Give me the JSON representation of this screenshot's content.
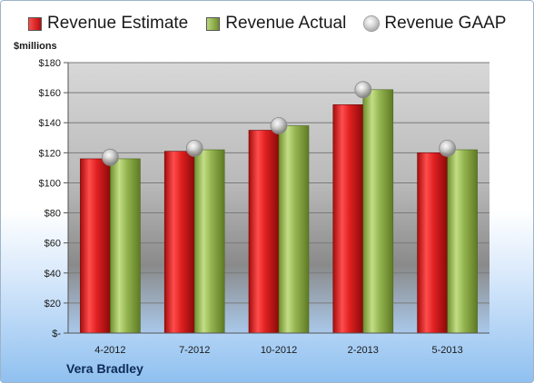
{
  "chart_data": {
    "type": "bar",
    "unit_label": "$millions",
    "categories": [
      "4-2012",
      "7-2012",
      "10-2012",
      "2-2013",
      "5-2013"
    ],
    "series": [
      {
        "name": "Revenue Estimate",
        "values": [
          116,
          121,
          135,
          152,
          120
        ],
        "color": "#d42222"
      },
      {
        "name": "Revenue Actual",
        "values": [
          116,
          122,
          138,
          162,
          122
        ],
        "color": "#8fb04a"
      },
      {
        "name": "Revenue GAAP",
        "values": [
          117,
          123,
          138,
          162,
          123
        ],
        "color": "#b0b0b0",
        "marker": "sphere"
      }
    ],
    "ylim": [
      0,
      180
    ],
    "yticks": [
      0,
      20,
      40,
      60,
      80,
      100,
      120,
      140,
      160,
      180
    ],
    "ytick_labels": [
      "$-",
      "$20",
      "$40",
      "$60",
      "$80",
      "$100",
      "$120",
      "$140",
      "$160",
      "$180"
    ],
    "grid": true,
    "legend_position": "top"
  },
  "footer": {
    "company": "Vera Bradley"
  }
}
